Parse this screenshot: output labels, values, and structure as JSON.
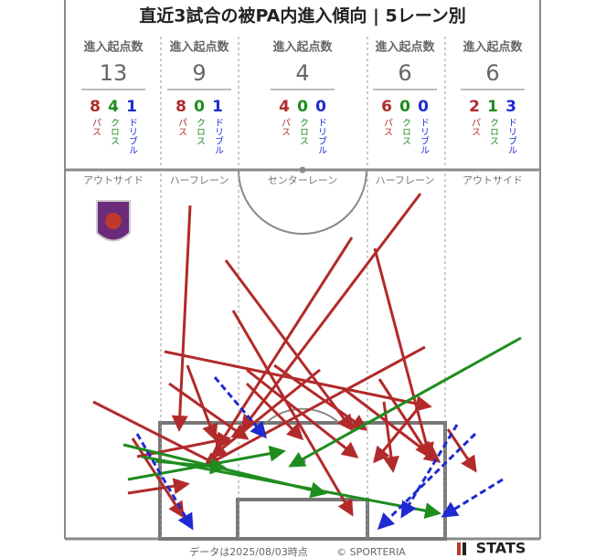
{
  "title": "直近3試合の被PA内進入傾向 | 5レーン別",
  "lanes": [
    {
      "name": "アウトサイド",
      "header": "進入起点数",
      "total": 13,
      "pass": 8,
      "cross": 4,
      "dribble": 1,
      "pass_label": "パス",
      "cross_label": "クロス",
      "dribble_label": "ドリブル"
    },
    {
      "name": "ハーフレーン",
      "header": "進入起点数",
      "total": 9,
      "pass": 8,
      "cross": 0,
      "dribble": 1,
      "pass_label": "パス",
      "cross_label": "クロス",
      "dribble_label": "ドリブル"
    },
    {
      "name": "センターレーン",
      "header": "進入起点数",
      "total": 4,
      "pass": 4,
      "cross": 0,
      "dribble": 0,
      "pass_label": "パス",
      "cross_label": "クロス",
      "dribble_label": "ドリブル"
    },
    {
      "name": "ハーフレーン",
      "header": "進入起点数",
      "total": 6,
      "pass": 6,
      "cross": 0,
      "dribble": 0,
      "pass_label": "パス",
      "cross_label": "クロス",
      "dribble_label": "ドリブル"
    },
    {
      "name": "アウトサイド",
      "header": "進入起点数",
      "total": 6,
      "pass": 2,
      "cross": 1,
      "dribble": 3,
      "pass_label": "パス",
      "cross_label": "クロス",
      "dribble_label": "ドリブル"
    }
  ],
  "footer": {
    "date": "データは2025/08/03時点",
    "copyright": "© SPORTERIA",
    "brand": "STATS"
  }
}
